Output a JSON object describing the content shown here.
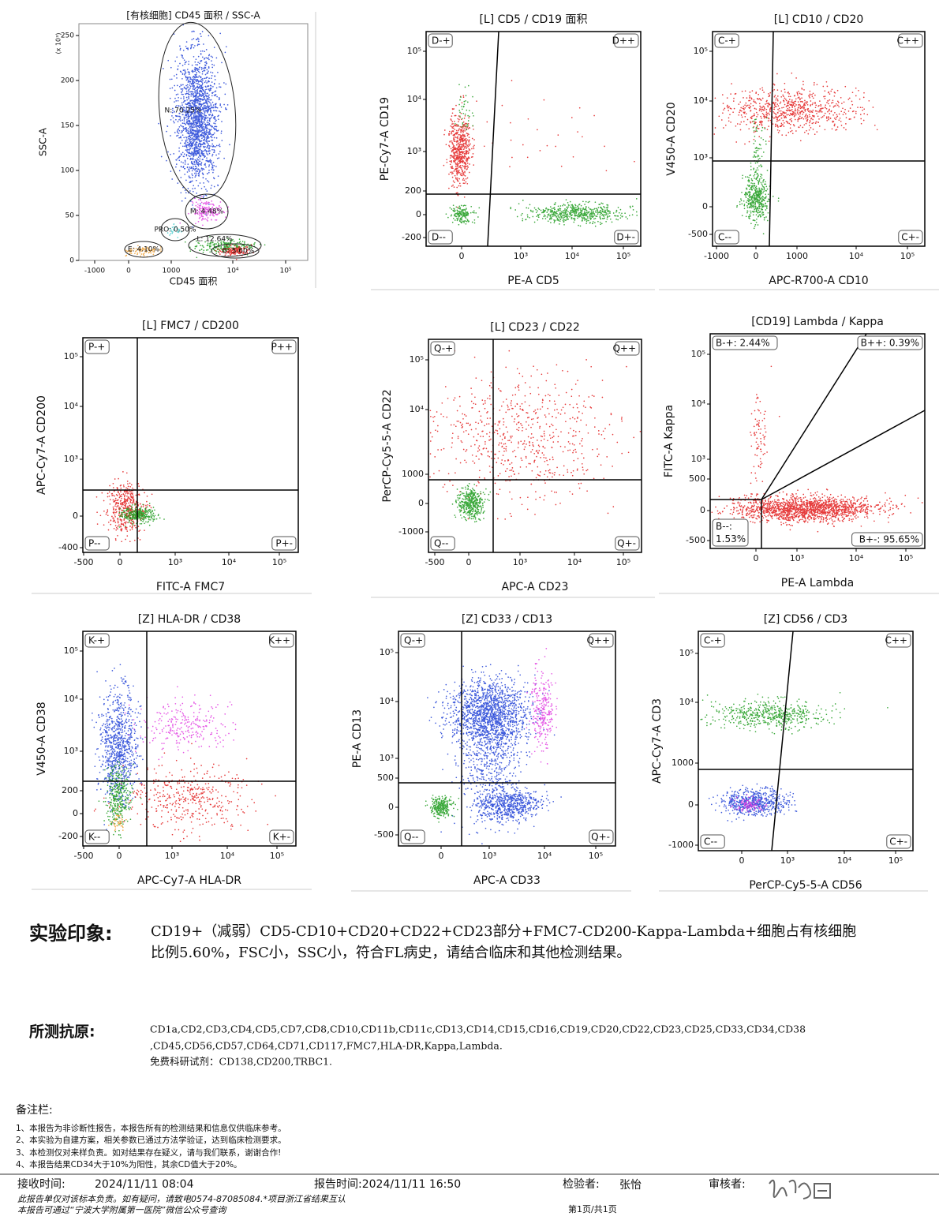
{
  "plots": [
    {
      "title": "[有核细胞] CD45 面积 / SSC-A",
      "scale_note": "(x 10³)",
      "x_label": "CD45 面积",
      "y_label": "SSC-A",
      "x_ticks": [
        "-1000",
        "0",
        "1000",
        "10⁴",
        "10⁵"
      ],
      "y_ticks": [
        "250",
        "200",
        "150",
        "100",
        "50",
        "0"
      ],
      "gates": [
        "N: 70.25%",
        "M: 4.48%",
        "PRO: 0.50%",
        "L: 12.64%",
        "E: 4.10%",
        "B: 5.60%"
      ]
    },
    {
      "title": "[L] CD5 / CD19 面积",
      "x_label": "PE-A CD5",
      "y_label": "PE-Cy7-A CD19",
      "x_ticks": [
        "0",
        "10³",
        "10⁴",
        "10⁵"
      ],
      "y_ticks": [
        "10⁵",
        "10⁴",
        "10³",
        "200",
        "0",
        "-200"
      ],
      "quadrants": [
        "D-+",
        "D++",
        "D--",
        "D+-"
      ]
    },
    {
      "title": "[L] CD10 / CD20",
      "x_label": "APC-R700-A CD10",
      "y_label": "V450-A CD20",
      "x_ticks": [
        "-1000",
        "0",
        "1000",
        "10⁴",
        "10⁵"
      ],
      "y_ticks": [
        "10⁵",
        "10⁴",
        "10³",
        "0",
        "-500"
      ],
      "quadrants": [
        "C-+",
        "C++",
        "C--",
        "C+-"
      ]
    },
    {
      "title": "[L] FMC7 / CD200",
      "x_label": "FITC-A FMC7",
      "y_label": "APC-Cy7-A CD200",
      "x_ticks": [
        "-500",
        "0",
        "10³",
        "10⁴",
        "10⁵"
      ],
      "y_ticks": [
        "10⁵",
        "10⁴",
        "10³",
        "0",
        "-400"
      ],
      "quadrants": [
        "P-+",
        "P++",
        "P--",
        "P+-"
      ]
    },
    {
      "title": "[L] CD23 / CD22",
      "x_label": "APC-A CD23",
      "y_label": "PerCP-Cy5-5-A CD22",
      "x_ticks": [
        "-500",
        "0",
        "10³",
        "10⁴",
        "10⁵"
      ],
      "y_ticks": [
        "10⁵",
        "10⁴",
        "1000",
        "0",
        "-1000"
      ],
      "quadrants": [
        "Q-+",
        "Q++",
        "Q--",
        "Q+-"
      ]
    },
    {
      "title": "[CD19] Lambda / Kappa",
      "x_label": "PE-A Lambda",
      "y_label": "FITC-A Kappa",
      "x_ticks": [
        "0",
        "10³",
        "10⁴",
        "10⁵"
      ],
      "y_ticks": [
        "10⁵",
        "10⁴",
        "10³",
        "500",
        "0",
        "-500"
      ],
      "quadrants": [
        "B-+: 2.44%",
        "B++: 0.39%",
        "B--:\n1.53%",
        "B+-: 95.65%"
      ]
    },
    {
      "title": "[Z] HLA-DR / CD38",
      "x_label": "APC-Cy7-A HLA-DR",
      "y_label": "V450-A CD38",
      "x_ticks": [
        "-500",
        "0",
        "10³",
        "10⁴",
        "10⁵"
      ],
      "y_ticks": [
        "10⁵",
        "10⁴",
        "10³",
        "200",
        "0",
        "-200"
      ],
      "quadrants": [
        "K-+",
        "K++",
        "K--",
        "K+-"
      ]
    },
    {
      "title": "[Z] CD33 / CD13",
      "x_label": "APC-A CD33",
      "y_label": "PE-A CD13",
      "x_ticks": [
        "0",
        "10³",
        "10⁴",
        "10⁵"
      ],
      "y_ticks": [
        "10⁵",
        "10⁴",
        "10³",
        "500",
        "0",
        "-500"
      ],
      "quadrants": [
        "Q-+",
        "Q++",
        "Q--",
        "Q+-"
      ]
    },
    {
      "title": "[Z] CD56 / CD3",
      "x_label": "PerCP-Cy5-5-A CD56",
      "y_label": "APC-Cy7-A CD3",
      "x_ticks": [
        "0",
        "10³",
        "10⁴",
        "10⁵"
      ],
      "y_ticks": [
        "10⁵",
        "10⁴",
        "1000",
        "0",
        "-1000"
      ],
      "quadrants": [
        "C-+",
        "C++",
        "C--",
        "C+-"
      ]
    }
  ],
  "impression": {
    "label": "实验印象:",
    "lines": [
      "CD19+（减弱）CD5-CD10+CD20+CD22+CD23部分+FMC7-CD200-Kappa-Lambda+细胞占有核细胞",
      "比例5.60%，FSC小，SSC小，符合FL病史，请结合临床和其他检测结果。"
    ]
  },
  "antigens": {
    "label": "所测抗原:",
    "lines": [
      "CD1a,CD2,CD3,CD4,CD5,CD7,CD8,CD10,CD11b,CD11c,CD13,CD14,CD15,CD16,CD19,CD20,CD22,CD23,CD25,CD33,CD34,CD38",
      ",CD45,CD56,CD57,CD64,CD71,CD117,FMC7,HLA-DR,Kappa,Lambda.",
      "免费科研试剂：CD138,CD200,TRBC1."
    ]
  },
  "notes": {
    "label": "备注栏:",
    "items": [
      "1、本报告为非诊断性报告，本报告所有的检测结果和信息仅供临床参考。",
      "2、本实验为自建方案，相关参数已通过方法学验证，达到临床检测要求。",
      "3、本检测仅对来样负责。如对结果存在疑义，请与我们联系，谢谢合作!",
      "4、本报告结果CD34大于10%为阳性，其余CD值大于20%。"
    ]
  },
  "footer": {
    "receive_label": "接收时间:",
    "receive_time": "2024/11/11 08:04",
    "report_time": "报告时间:2024/11/11 16:50",
    "tester_label": "检验者:",
    "tester": "张怡",
    "reviewer_label": "审核者:",
    "disclaimer": [
      "此报告单仅对该标本负责。如有疑问，请致电0574-87085084.*项目浙江省结果互认",
      "本报告可通过“宁波大学附属第一医院”微信公众号查询"
    ],
    "page": "第1页/共1页"
  }
}
